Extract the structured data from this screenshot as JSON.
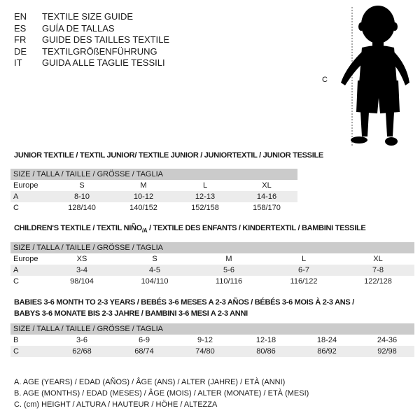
{
  "languages": [
    {
      "code": "EN",
      "text": "TEXTILE SIZE GUIDE"
    },
    {
      "code": "ES",
      "text": "GUÍA DE TALLAS"
    },
    {
      "code": "FR",
      "text": "GUIDE DES TAILLES TEXTILE"
    },
    {
      "code": "DE",
      "text": "TEXTILGRÖßENFÜHRUNG"
    },
    {
      "code": "IT",
      "text": "GUIDA ALLE TAGLIE TESSILI"
    }
  ],
  "figure": {
    "height_label": "C",
    "icon": "child-silhouette-icon"
  },
  "size_header": "SIZE / TALLA / TAILLE / GRÖSSE / TAGLIA",
  "junior": {
    "title": "JUNIOR TEXTILE / TEXTIL JUNIOR/ TEXTILE JUNIOR / JUNIORTEXTIL / JUNIOR TESSILE",
    "rows": [
      {
        "label": "Europe",
        "values": [
          "S",
          "M",
          "L",
          "XL"
        ]
      },
      {
        "label": "A",
        "values": [
          "8-10",
          "10-12",
          "12-13",
          "14-16"
        ]
      },
      {
        "label": "C",
        "values": [
          "128/140",
          "140/152",
          "152/158",
          "158/170"
        ]
      }
    ]
  },
  "children": {
    "title": "CHILDREN'S TEXTILE / TEXTIL NIÑO/A / TEXTILE DES ENFANTS / KINDERTEXTIL / BAMBINI TESSILE",
    "rows": [
      {
        "label": "Europe",
        "values": [
          "XS",
          "S",
          "M",
          "L",
          "XL"
        ]
      },
      {
        "label": "A",
        "values": [
          "3-4",
          "4-5",
          "5-6",
          "6-7",
          "7-8"
        ]
      },
      {
        "label": "C",
        "values": [
          "98/104",
          "104/110",
          "110/116",
          "116/122",
          "122/128"
        ]
      }
    ]
  },
  "babies": {
    "title_line1": "BABIES 3-6 MONTH TO 2-3 YEARS / BEBÉS 3-6 MESES A 2-3 AÑOS / BÉBÉS 3-6 MOIS À 2-3 ANS /",
    "title_line2": "BABYS 3-6 MONATE BIS 2-3 JAHRE / BAMBINI 3-6 MESI A 2-3 ANNI",
    "rows": [
      {
        "label": "B",
        "values": [
          "3-6",
          "6-9",
          "9-12",
          "12-18",
          "18-24",
          "24-36"
        ]
      },
      {
        "label": "C",
        "values": [
          "62/68",
          "68/74",
          "74/80",
          "80/86",
          "86/92",
          "92/98"
        ]
      }
    ]
  },
  "legend": [
    "A. AGE (YEARS) / EDAD (AÑOS) / ÂGE (ANS) / ALTER (JAHRE) / ETÀ (ANNI)",
    "B. AGE (MONTHS) / EDAD (MESES) / ÂGE (MOIS) / ALTER (MONATE) / ETÀ (MESI)",
    "C. (cm) HEIGHT / ALTURA / HAUTEUR / HÖHE / ALTEZZA"
  ]
}
